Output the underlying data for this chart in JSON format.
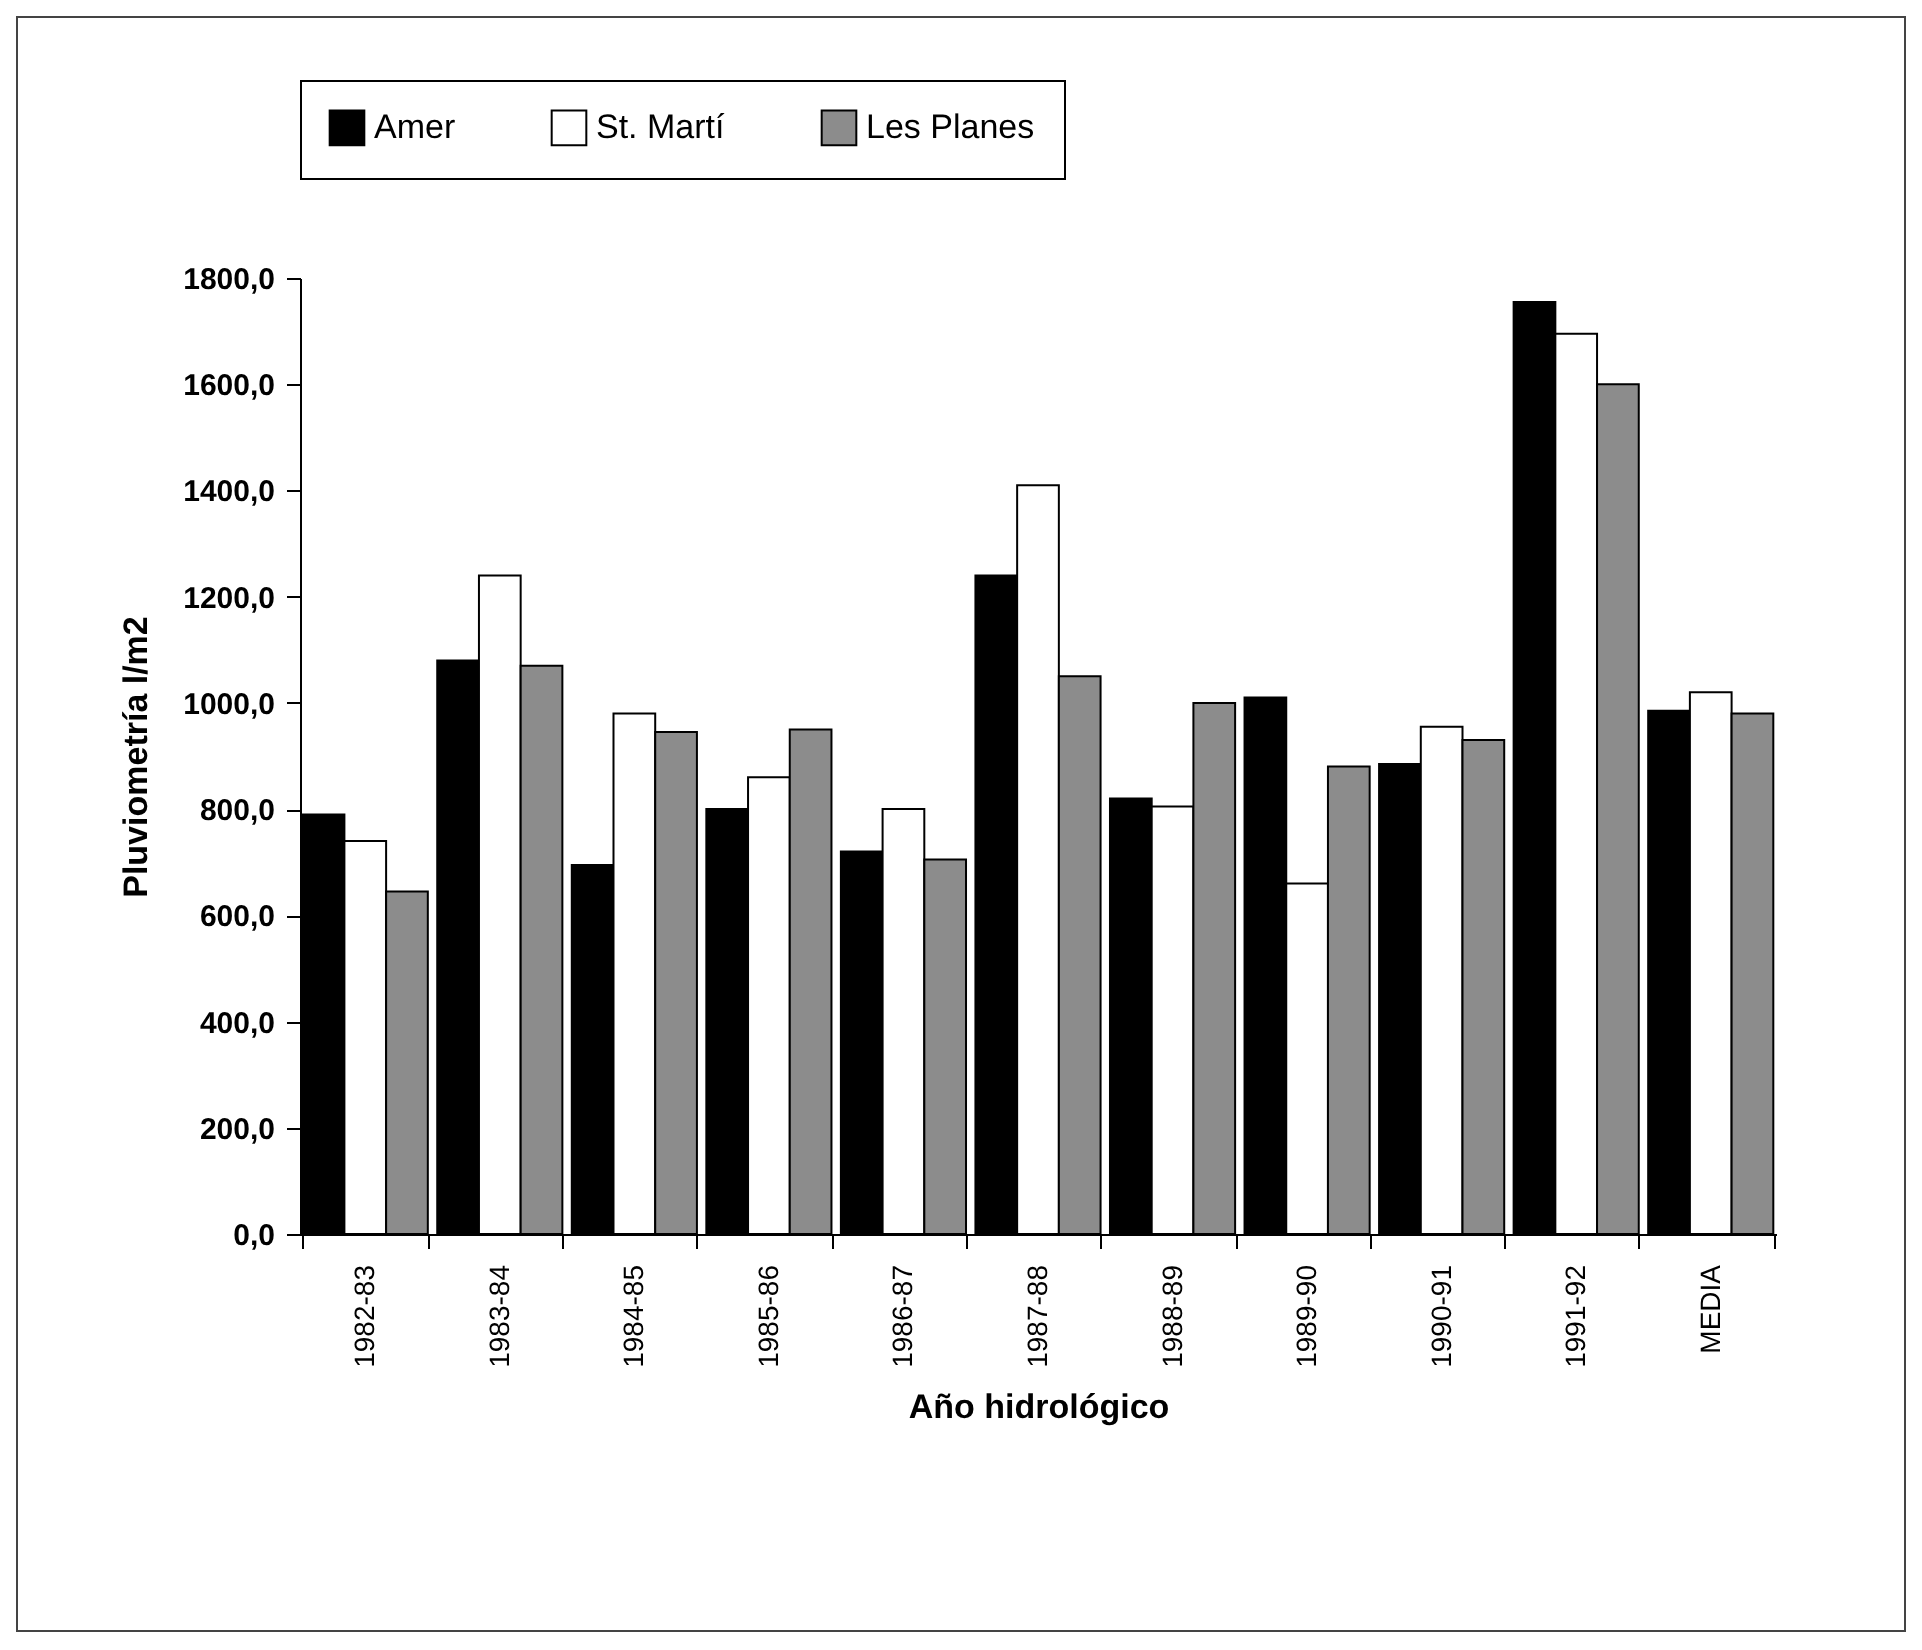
{
  "chart_data": {
    "type": "bar",
    "xlabel": "Año hidrológico",
    "ylabel": "Pluviometría l/m2",
    "categories": [
      "1982-83",
      "1983-84",
      "1984-85",
      "1985-86",
      "1986-87",
      "1987-88",
      "1988-89",
      "1989-90",
      "1990-91",
      "1991-92",
      "MEDIA"
    ],
    "series": [
      {
        "name": "Amer",
        "color": "#000000",
        "values": [
          790,
          1080,
          695,
          800,
          720,
          1240,
          820,
          1010,
          885,
          1755,
          985
        ]
      },
      {
        "name": "St. Martí",
        "color": "#ffffff",
        "values": [
          740,
          1240,
          980,
          860,
          800,
          1410,
          805,
          660,
          955,
          1695,
          1020
        ]
      },
      {
        "name": "Les Planes",
        "color": "#8c8c8c",
        "values": [
          645,
          1070,
          945,
          950,
          705,
          1050,
          1000,
          880,
          930,
          1600,
          980
        ]
      }
    ],
    "ylim": [
      0,
      1800
    ],
    "yticks": [
      {
        "value": 0,
        "label": "0,0"
      },
      {
        "value": 200,
        "label": "200,0"
      },
      {
        "value": 400,
        "label": "400,0"
      },
      {
        "value": 600,
        "label": "600,0"
      },
      {
        "value": 800,
        "label": "800,0"
      },
      {
        "value": 1000,
        "label": "1000,0"
      },
      {
        "value": 1200,
        "label": "1200,0"
      },
      {
        "value": 1400,
        "label": "1400,0"
      },
      {
        "value": 1600,
        "label": "1600,0"
      },
      {
        "value": 1800,
        "label": "1800,0"
      }
    ],
    "legend": "top"
  }
}
